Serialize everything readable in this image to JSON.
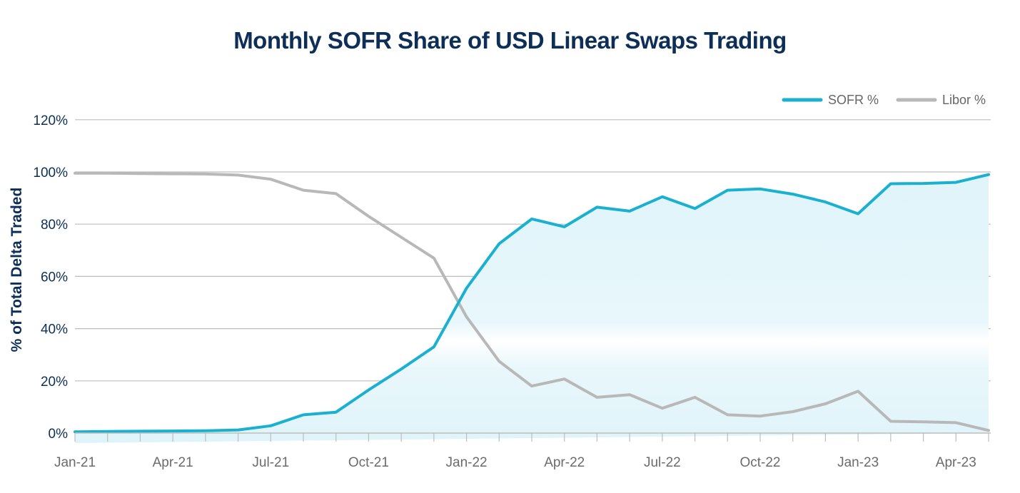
{
  "chart_data": {
    "type": "line",
    "title": "Monthly SOFR Share of USD Linear Swaps Trading",
    "xlabel": "",
    "ylabel": "% of Total Delta Traded",
    "ylim": [
      0,
      120
    ],
    "yticks": [
      "0%",
      "20%",
      "40%",
      "60%",
      "80%",
      "100%",
      "120%"
    ],
    "ytick_values": [
      0,
      20,
      40,
      60,
      80,
      100,
      120
    ],
    "grid": true,
    "legend": "top-right",
    "x": [
      "Jan-21",
      "Feb-21",
      "Mar-21",
      "Apr-21",
      "May-21",
      "Jun-21",
      "Jul-21",
      "Aug-21",
      "Sep-21",
      "Oct-21",
      "Nov-21",
      "Dec-21",
      "Jan-22",
      "Feb-22",
      "Mar-22",
      "Apr-22",
      "May-22",
      "Jun-22",
      "Jul-22",
      "Aug-22",
      "Sep-22",
      "Oct-22",
      "Nov-22",
      "Dec-22",
      "Jan-23",
      "Feb-23",
      "Mar-23",
      "Apr-23",
      "May-23"
    ],
    "xtick_labels": [
      "Jan-21",
      "Apr-21",
      "Jul-21",
      "Oct-21",
      "Jan-22",
      "Apr-22",
      "Jul-22",
      "Oct-22",
      "Jan-23",
      "Apr-23"
    ],
    "series": [
      {
        "name": "SOFR %",
        "color": "#1ab0d0",
        "area_fill": true,
        "values": [
          0.5,
          0.6,
          0.7,
          0.8,
          0.9,
          1.2,
          2.8,
          7,
          8,
          16.5,
          24.5,
          33,
          55.5,
          72.5,
          82,
          79,
          86.5,
          85,
          90.5,
          86,
          93,
          93.5,
          91.5,
          88.5,
          84,
          95.5,
          95.6,
          96,
          99
        ]
      },
      {
        "name": "Libor %",
        "color": "#b8b8b8",
        "area_fill": false,
        "values": [
          99.5,
          99.5,
          99.4,
          99.3,
          99.2,
          98.8,
          97.2,
          93,
          91.7,
          83,
          75,
          67,
          44.5,
          27.5,
          18,
          20.7,
          13.7,
          14.7,
          9.5,
          13.7,
          7,
          6.5,
          8.2,
          11.2,
          16,
          4.5,
          4.3,
          4,
          1
        ]
      }
    ]
  }
}
